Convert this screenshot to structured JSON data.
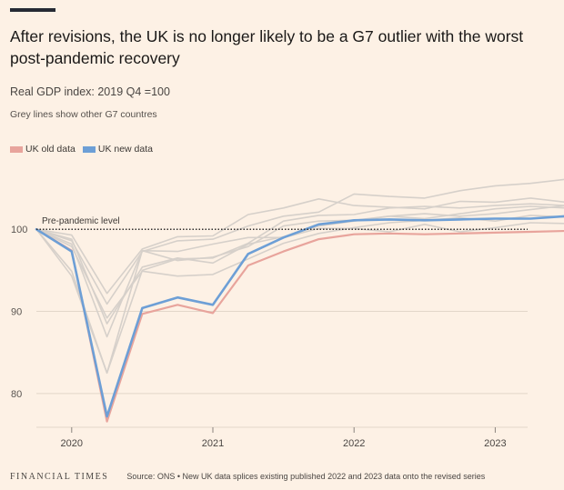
{
  "header": {
    "title": "After revisions, the UK is no longer likely to be a G7 outlier with the worst post-pandemic recovery",
    "subtitle": "Real GDP index: 2019 Q4 =100",
    "note": "Grey lines show other G7 countres"
  },
  "legend": [
    {
      "label": "UK old data",
      "color": "#e8a49c"
    },
    {
      "label": "UK new data",
      "color": "#6d9fd6"
    }
  ],
  "footer": {
    "publisher": "FINANCIAL TIMES",
    "source": "Source: ONS • New UK data splices existing published 2022 and 2023 data onto the revised series"
  },
  "chart_data": {
    "type": "line",
    "x": [
      "2019 Q4",
      "2020 Q1",
      "2020 Q2",
      "2020 Q3",
      "2020 Q4",
      "2021 Q1",
      "2021 Q2",
      "2021 Q3",
      "2021 Q4",
      "2022 Q1",
      "2022 Q2",
      "2022 Q3",
      "2022 Q4",
      "2023 Q1",
      "2023 Q2",
      "2023 Q3"
    ],
    "x_ticks": [
      {
        "label": "2020",
        "index": 1
      },
      {
        "label": "2021",
        "index": 5
      },
      {
        "label": "2022",
        "index": 9
      },
      {
        "label": "2023",
        "index": 13
      }
    ],
    "y_ticks": [
      80,
      90,
      100
    ],
    "ylim": [
      75,
      108
    ],
    "reference_line": {
      "value": 100,
      "label": "Pre-pandemic level"
    },
    "series": [
      {
        "name": "UK old data",
        "color": "#e8a49c",
        "values": [
          100,
          97.4,
          76.6,
          89.7,
          90.8,
          89.8,
          95.6,
          97.3,
          98.8,
          99.4,
          99.5,
          99.4,
          99.5,
          99.6,
          99.7,
          99.8
        ]
      },
      {
        "name": "UK new data",
        "color": "#6d9fd6",
        "values": [
          100,
          97.3,
          77.2,
          90.4,
          91.7,
          90.8,
          97.0,
          99.0,
          100.6,
          101.1,
          101.2,
          101.1,
          101.2,
          101.3,
          101.3,
          101.6
        ]
      },
      {
        "color": "#d6d0ca",
        "values": [
          100,
          98.6,
          90.9,
          97.3,
          98.6,
          98.8,
          100.4,
          101.6,
          102.1,
          104.3,
          104.0,
          103.8,
          104.7,
          105.3,
          105.6,
          106.1
        ]
      },
      {
        "color": "#d6d0ca",
        "values": [
          100,
          99.3,
          92.2,
          97.6,
          99.1,
          99.2,
          101.8,
          102.6,
          103.7,
          102.9,
          102.7,
          102.5,
          103.4,
          103.3,
          103.8,
          103.3
        ]
      },
      {
        "color": "#d6d0ca",
        "values": [
          100,
          97.9,
          89.2,
          94.9,
          94.3,
          94.5,
          96.4,
          98.3,
          99.5,
          100.2,
          100.8,
          101.1,
          101.4,
          101.0,
          101.7,
          101.5
        ]
      },
      {
        "color": "#d6d0ca",
        "values": [
          100,
          98.8,
          88.5,
          95.4,
          96.5,
          95.9,
          98.2,
          99.1,
          100.4,
          101.0,
          101.6,
          101.3,
          101.9,
          102.5,
          102.8,
          102.6
        ]
      },
      {
        "color": "#d6d0ca",
        "values": [
          100,
          94.3,
          82.5,
          97.4,
          96.2,
          96.6,
          97.9,
          100.4,
          101.0,
          101.1,
          101.6,
          101.9,
          101.6,
          101.9,
          102.4,
          102.9
        ]
      },
      {
        "color": "#d6d0ca",
        "values": [
          100,
          94.9,
          82.5,
          95.0,
          96.4,
          96.5,
          98.3,
          101.0,
          101.7,
          101.8,
          102.6,
          102.8,
          102.6,
          102.9,
          103.1,
          102.9
        ]
      },
      {
        "color": "#d6d0ca",
        "values": [
          100,
          98.2,
          86.9,
          97.4,
          97.3,
          98.2,
          99.0,
          99.0,
          100.1,
          100.1,
          99.7,
          100.6,
          99.7,
          100.2,
          100.8,
          100.7
        ]
      }
    ]
  }
}
